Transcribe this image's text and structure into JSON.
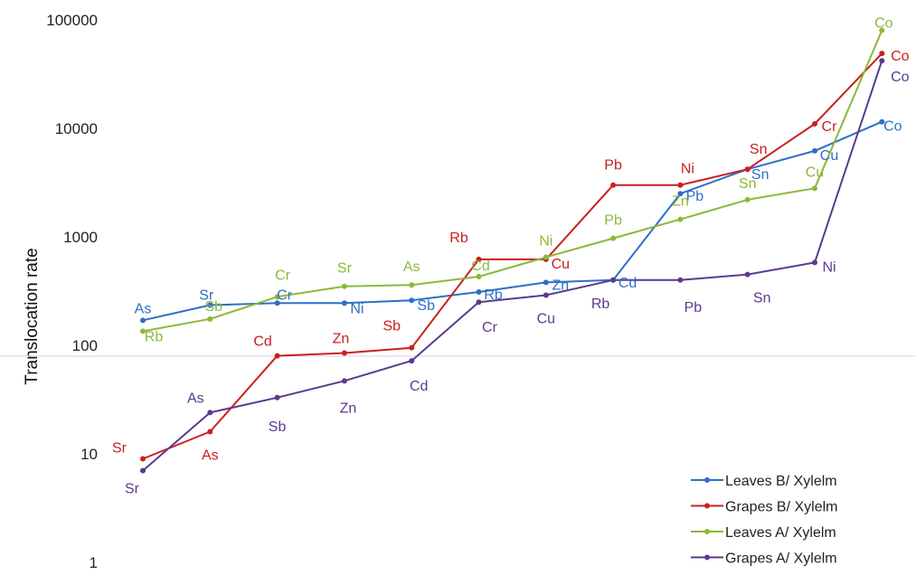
{
  "chart_data": {
    "type": "line",
    "ylabel": "Translocation rate",
    "yscale": "log",
    "ylim": [
      1,
      100000
    ],
    "ytick_labels": [
      "1",
      "10",
      "100",
      "1000",
      "10000",
      "100000"
    ],
    "legend_position": "bottom-right",
    "series": [
      {
        "name": "Leaves  B/ Xylelm",
        "color": "#2e6fc7",
        "values": [
          170,
          235,
          245,
          245,
          260,
          310,
          380,
          400,
          2500,
          4200,
          6200,
          11500
        ],
        "labels": [
          "As",
          "Sr",
          "Cr",
          "Ni",
          "Sb",
          "Rb",
          "Zn",
          "Cd",
          "Pb",
          "Sn",
          "Cu",
          "Co"
        ]
      },
      {
        "name": "Grapes B/ Xylelm",
        "color": "#c8201e",
        "values": [
          9,
          16,
          80,
          85,
          95,
          620,
          620,
          3000,
          3000,
          4200,
          11000,
          49000
        ],
        "labels": [
          "Sr",
          "As",
          "Cd",
          "Zn",
          "Sb",
          "Rb",
          "Cu",
          "Pb",
          "Ni",
          "Sn",
          "Cr",
          "Co"
        ]
      },
      {
        "name": "Leaves A/ Xylelm",
        "color": "#8cb83a",
        "values": [
          135,
          175,
          280,
          350,
          360,
          430,
          650,
          970,
          1450,
          2200,
          2800,
          80000
        ],
        "labels": [
          "Rb",
          "Sb",
          "Cr",
          "Sr",
          "As",
          "Cd",
          "Ni",
          "Pb",
          "Zn",
          "Sn",
          "Cu",
          "Co"
        ]
      },
      {
        "name": "Grapes A/ Xylelm",
        "color": "#5b3a8e",
        "values": [
          7,
          24,
          33,
          47,
          72,
          250,
          290,
          400,
          400,
          450,
          580,
          42000
        ],
        "labels": [
          "Sr",
          "As",
          "Sb",
          "Zn",
          "Cd",
          "Cr",
          "Cu",
          "Rb",
          "Pb",
          "Sn",
          "Ni",
          "Co"
        ]
      }
    ]
  }
}
